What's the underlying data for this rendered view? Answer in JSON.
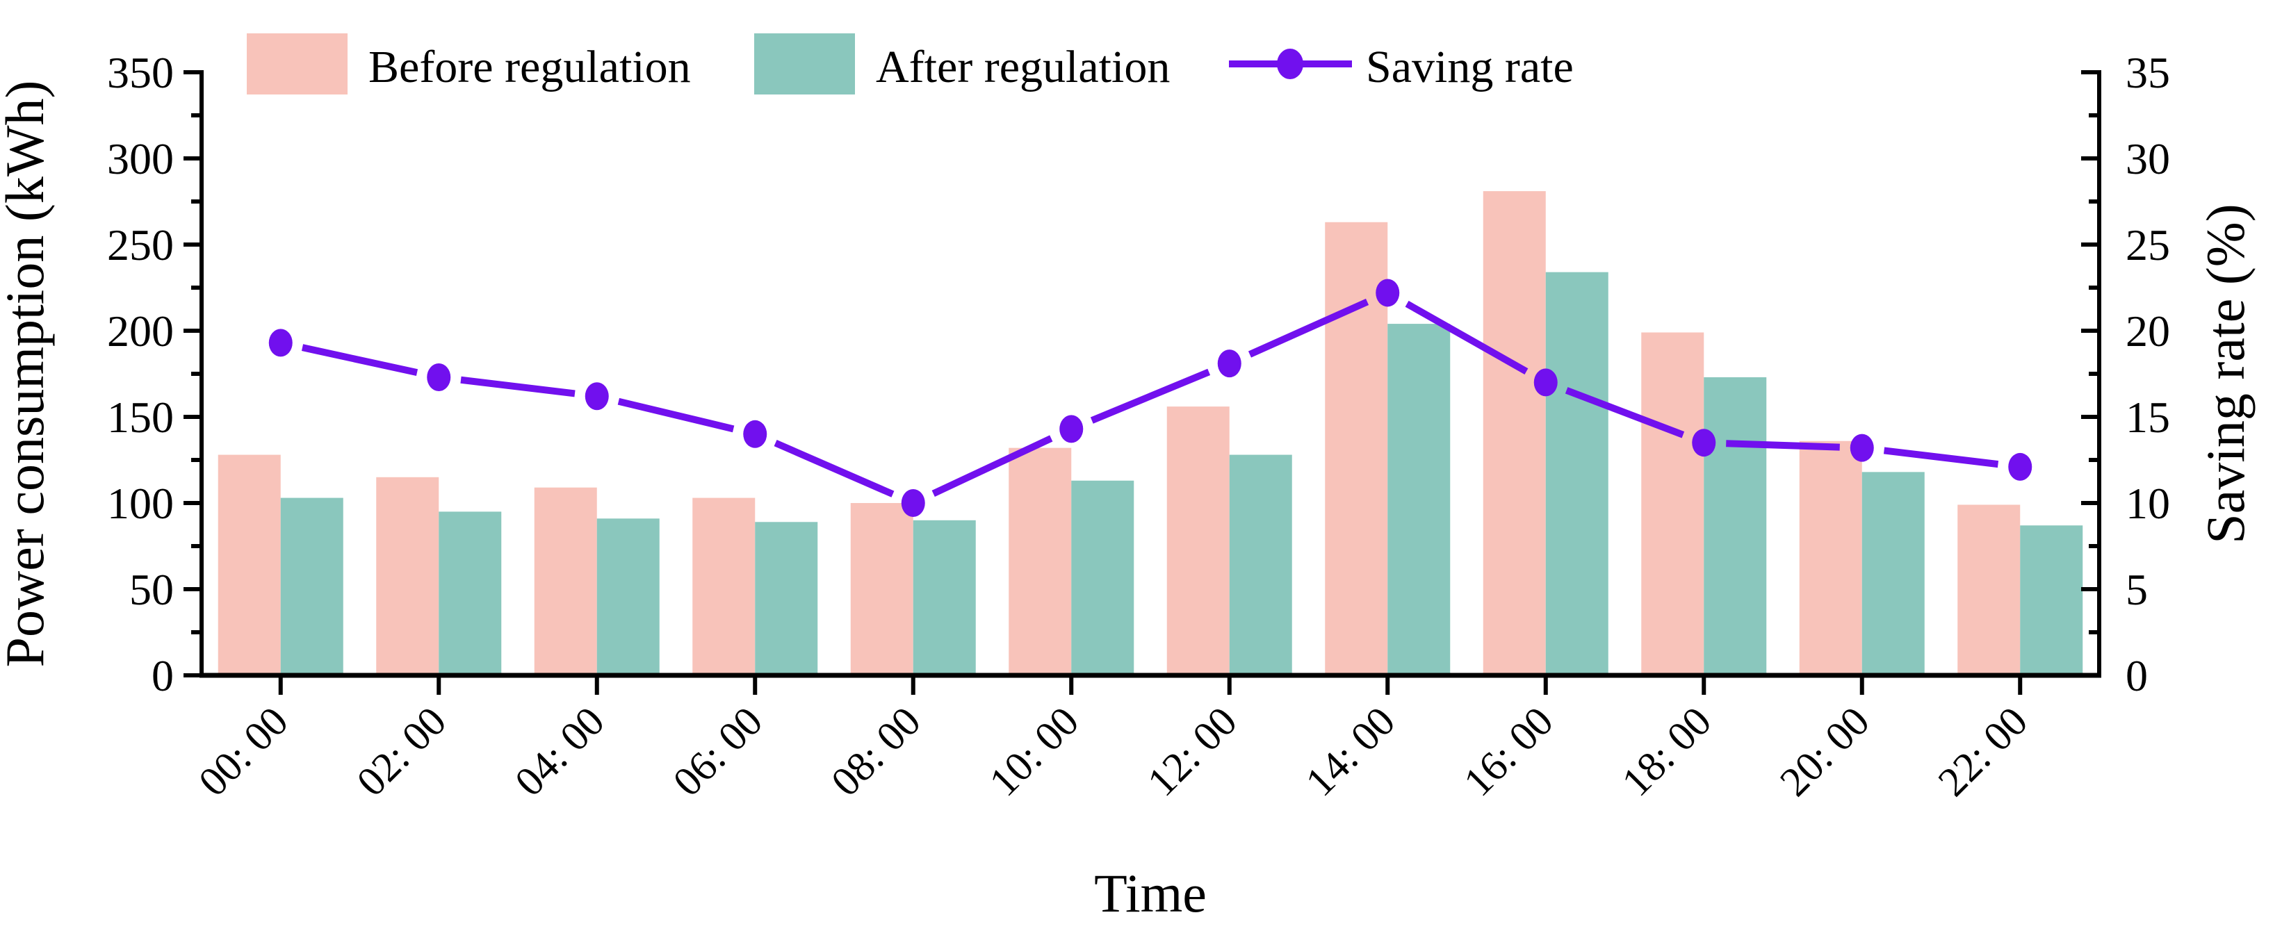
{
  "chart_data": {
    "type": "bar+line",
    "title": "",
    "categories": [
      "00: 00",
      "02: 00",
      "04: 00",
      "06: 00",
      "08: 00",
      "10: 00",
      "12: 00",
      "14: 00",
      "16: 00",
      "18: 00",
      "20: 00",
      "22: 00"
    ],
    "series": [
      {
        "name": "Before regulation",
        "type": "bar",
        "axis": "left",
        "color": "#F8C3BA",
        "values": [
          128,
          115,
          109,
          103,
          100,
          132,
          156,
          263,
          281,
          199,
          136,
          99
        ]
      },
      {
        "name": "After regulation",
        "type": "bar",
        "axis": "left",
        "color": "#8AC7BD",
        "values": [
          103,
          95,
          91,
          89,
          90,
          113,
          128,
          204,
          234,
          173,
          118,
          87
        ]
      },
      {
        "name": "Saving rate",
        "type": "line",
        "axis": "right",
        "color": "#7110EE",
        "values": [
          19.3,
          17.3,
          16.2,
          14.0,
          10.0,
          14.3,
          18.1,
          22.2,
          17.0,
          13.5,
          13.2,
          12.1
        ]
      }
    ],
    "left_axis": {
      "label": "Power consumption (kWh)",
      "min": 0,
      "max": 350,
      "major_step": 50,
      "minor_step": 25
    },
    "right_axis": {
      "label": "Saving rate (%)",
      "min": 0,
      "max": 35,
      "major_step": 5,
      "minor_step": 2.5
    },
    "x_axis": {
      "label": "Time"
    },
    "legend_position": "top",
    "grid": false,
    "axis_color": "#000000"
  }
}
